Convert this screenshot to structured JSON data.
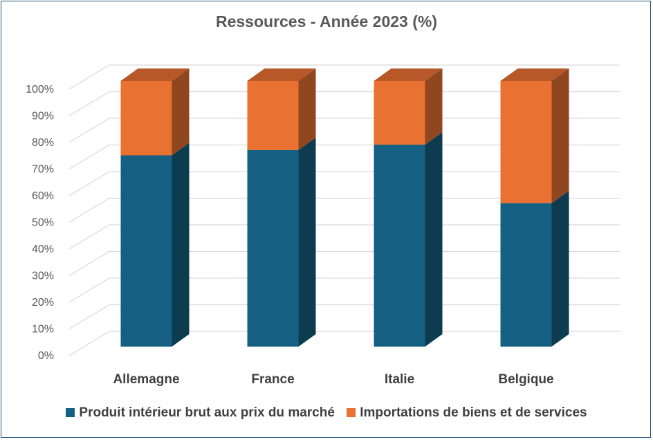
{
  "chart_data": {
    "type": "bar",
    "stacked": true,
    "three_d": true,
    "title": "Ressources - Année 2023 (%)",
    "categories": [
      "Allemagne",
      "France",
      "Italie",
      "Belgique"
    ],
    "series": [
      {
        "name": "Produit intérieur brut aux prix du marché",
        "color": "#156082",
        "values": [
          72,
          74,
          76,
          54
        ]
      },
      {
        "name": "Importations de biens et de services",
        "color": "#e97132",
        "values": [
          28,
          26,
          24,
          46
        ]
      }
    ],
    "yticks": [
      "0%",
      "10%",
      "20%",
      "30%",
      "40%",
      "50%",
      "60%",
      "70%",
      "80%",
      "90%",
      "100%"
    ],
    "ylim": [
      0,
      100
    ],
    "grid": true,
    "legend_position": "bottom"
  }
}
